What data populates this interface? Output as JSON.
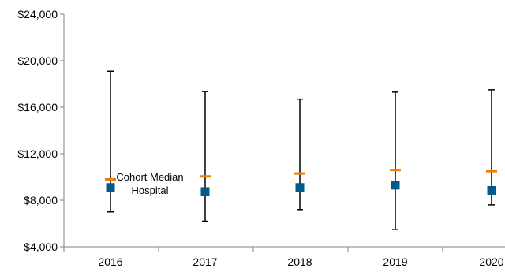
{
  "chart_data": {
    "type": "scatter",
    "title": "",
    "xlabel": "",
    "ylabel": "",
    "categories": [
      "2016",
      "2017",
      "2018",
      "2019",
      "2020"
    ],
    "ylim": [
      4000,
      24000
    ],
    "y_ticks": [
      4000,
      8000,
      12000,
      16000,
      20000,
      24000
    ],
    "y_tick_labels": [
      "$4,000",
      "$8,000",
      "$12,000",
      "$16,000",
      "$20,000",
      "$24,000"
    ],
    "grid": false,
    "legend": "none",
    "annotation": {
      "lines": [
        "Cohort Median",
        "Hospital"
      ]
    },
    "series": [
      {
        "name": "Cohort Median",
        "marker": "dash",
        "color": "#F07B05",
        "values": [
          9800,
          10050,
          10300,
          10600,
          10500
        ]
      },
      {
        "name": "Hospital",
        "marker": "square",
        "color": "#005A8B",
        "values": [
          9100,
          8750,
          9100,
          9300,
          8850
        ]
      }
    ],
    "ranges": {
      "low": [
        7000,
        6200,
        7200,
        5500,
        7600
      ],
      "high": [
        19100,
        17350,
        16700,
        17300,
        17500
      ],
      "color": "#000000"
    }
  }
}
